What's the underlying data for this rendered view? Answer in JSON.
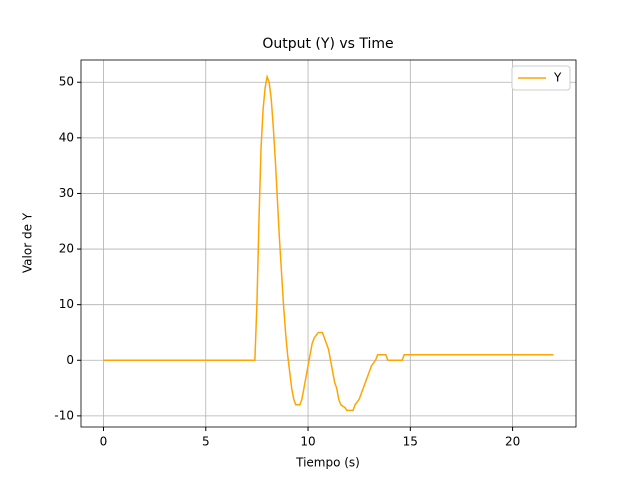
{
  "chart_data": {
    "type": "line",
    "title": "Output (Y) vs Time",
    "x_label": "Tiempo (s)",
    "y_label": "Valor de Y",
    "x": [
      0,
      7.4,
      7.5,
      7.6,
      7.7,
      7.8,
      7.9,
      8.0,
      8.1,
      8.2,
      8.3,
      8.4,
      8.5,
      8.6,
      8.7,
      8.8,
      8.9,
      9.0,
      9.1,
      9.2,
      9.3,
      9.4,
      9.6,
      9.7,
      9.8,
      9.9,
      10.0,
      10.1,
      10.2,
      10.3,
      10.5,
      10.7,
      10.8,
      10.9,
      11.0,
      11.1,
      11.2,
      11.3,
      11.4,
      11.5,
      11.6,
      11.8,
      11.9,
      12.2,
      12.3,
      12.5,
      12.6,
      12.8,
      12.9,
      13.1,
      13.3,
      13.4,
      13.8,
      13.9,
      14.6,
      14.7,
      22
    ],
    "series": [
      {
        "name": "Y",
        "color": "#ffa500",
        "values": [
          0,
          0,
          10,
          25,
          38,
          45,
          49,
          51,
          50,
          47,
          42,
          36,
          29,
          22,
          16,
          10,
          5,
          1,
          -2,
          -5,
          -7,
          -8,
          -8,
          -7,
          -5,
          -3,
          -1,
          1,
          3,
          4,
          5,
          5,
          4,
          3,
          2,
          0,
          -2,
          -4,
          -5,
          -7,
          -8,
          -8.5,
          -9,
          -9,
          -8,
          -7,
          -6,
          -4,
          -3,
          -1,
          0,
          1,
          1,
          0,
          0,
          1,
          1
        ]
      }
    ],
    "xlim": [
      -1.1,
      23.1
    ],
    "ylim": [
      -12,
      54
    ],
    "xticks": [
      0,
      5,
      10,
      15,
      20
    ],
    "yticks": [
      -10,
      0,
      10,
      20,
      30,
      40,
      50
    ],
    "grid": true,
    "legend": "upper right"
  }
}
